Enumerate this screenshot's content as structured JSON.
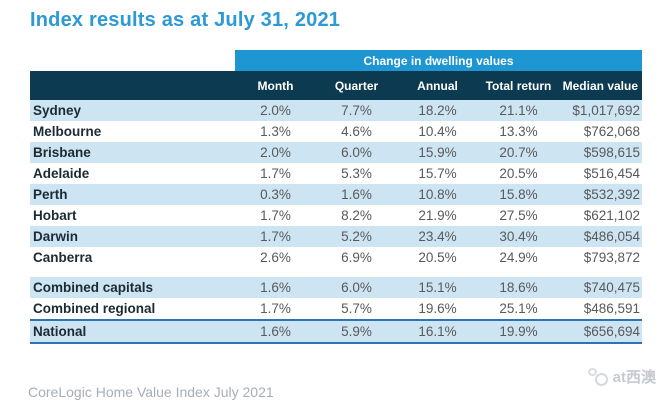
{
  "page": {
    "title": "Index results as at July 31, 2021",
    "footer": "CoreLogic Home Value Index July 2021",
    "watermark_text": "at西澳"
  },
  "colors": {
    "title_blue": "#2B9AD5",
    "band_blue": "#1E96D2",
    "header_navy": "#0B3A51",
    "row_stripe_blue": "#CDE4F3",
    "national_border_blue": "#2E74B5",
    "value_gray": "#595959",
    "footer_gray": "#A7ADB8"
  },
  "table": {
    "band_title": "Change in dwelling values",
    "columns": [
      "Month",
      "Quarter",
      "Annual",
      "Total return",
      "Median value"
    ],
    "rows": [
      {
        "label": "Sydney",
        "group": "capital",
        "values": [
          "2.0%",
          "7.7%",
          "18.2%",
          "21.1%",
          "$1,017,692"
        ]
      },
      {
        "label": "Melbourne",
        "group": "capital",
        "values": [
          "1.3%",
          "4.6%",
          "10.4%",
          "13.3%",
          "$762,068"
        ]
      },
      {
        "label": "Brisbane",
        "group": "capital",
        "values": [
          "2.0%",
          "6.0%",
          "15.9%",
          "20.7%",
          "$598,615"
        ]
      },
      {
        "label": "Adelaide",
        "group": "capital",
        "values": [
          "1.7%",
          "5.3%",
          "15.7%",
          "20.5%",
          "$516,454"
        ]
      },
      {
        "label": "Perth",
        "group": "capital",
        "values": [
          "0.3%",
          "1.6%",
          "10.8%",
          "15.8%",
          "$532,392"
        ]
      },
      {
        "label": "Hobart",
        "group": "capital",
        "values": [
          "1.7%",
          "8.2%",
          "21.9%",
          "27.5%",
          "$621,102"
        ]
      },
      {
        "label": "Darwin",
        "group": "capital",
        "values": [
          "1.7%",
          "5.2%",
          "23.4%",
          "30.4%",
          "$486,054"
        ]
      },
      {
        "label": "Canberra",
        "group": "capital",
        "values": [
          "2.6%",
          "6.9%",
          "20.5%",
          "24.9%",
          "$793,872"
        ]
      },
      {
        "label": "Combined capitals",
        "group": "combined",
        "gap_before": true,
        "values": [
          "1.6%",
          "6.0%",
          "15.1%",
          "18.6%",
          "$740,475"
        ]
      },
      {
        "label": "Combined regional",
        "group": "combined",
        "values": [
          "1.7%",
          "5.7%",
          "19.6%",
          "25.1%",
          "$486,591"
        ]
      },
      {
        "label": "National",
        "group": "national",
        "values": [
          "1.6%",
          "5.9%",
          "16.1%",
          "19.9%",
          "$656,694"
        ]
      }
    ]
  },
  "chart_data": {
    "type": "table",
    "title": "Index results as at July 31, 2021",
    "group_header": "Change in dwelling values",
    "columns": [
      "Month",
      "Quarter",
      "Annual",
      "Total return",
      "Median value"
    ],
    "categories": [
      "Sydney",
      "Melbourne",
      "Brisbane",
      "Adelaide",
      "Perth",
      "Hobart",
      "Darwin",
      "Canberra",
      "Combined capitals",
      "Combined regional",
      "National"
    ],
    "series": [
      {
        "name": "Month",
        "values": [
          "2.0%",
          "1.3%",
          "2.0%",
          "1.7%",
          "0.3%",
          "1.7%",
          "1.7%",
          "2.6%",
          "1.6%",
          "1.7%",
          "1.6%"
        ]
      },
      {
        "name": "Quarter",
        "values": [
          "7.7%",
          "4.6%",
          "6.0%",
          "5.3%",
          "1.6%",
          "8.2%",
          "5.2%",
          "6.9%",
          "6.0%",
          "5.7%",
          "5.9%"
        ]
      },
      {
        "name": "Annual",
        "values": [
          "18.2%",
          "10.4%",
          "15.9%",
          "15.7%",
          "10.8%",
          "21.9%",
          "23.4%",
          "20.5%",
          "15.1%",
          "19.6%",
          "16.1%"
        ]
      },
      {
        "name": "Total return",
        "values": [
          "21.1%",
          "13.3%",
          "20.7%",
          "20.5%",
          "15.8%",
          "27.5%",
          "30.4%",
          "24.9%",
          "18.6%",
          "25.1%",
          "19.9%"
        ]
      },
      {
        "name": "Median value",
        "values": [
          "$1,017,692",
          "$762,068",
          "$598,615",
          "$516,454",
          "$532,392",
          "$621,102",
          "$486,054",
          "$793,872",
          "$740,475",
          "$486,591",
          "$656,694"
        ]
      }
    ],
    "source": "CoreLogic Home Value Index July 2021"
  }
}
